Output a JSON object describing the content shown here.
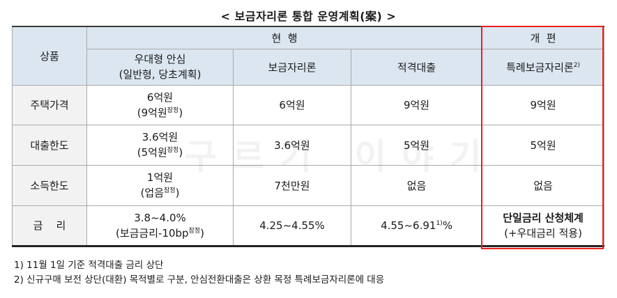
{
  "title": "< 보금자리론 통합 운영계획(案) >",
  "table": {
    "product_label": "상품",
    "current_label": "현  행",
    "reform_label": "개  편",
    "columns": {
      "c1_line1": "우대형 안심",
      "c1_line2": "(일반형, 당초계획)",
      "c2": "보금자리론",
      "c3": "적격대출",
      "c4": "특례보금자리론",
      "c4_sup": "2)"
    },
    "rows": [
      {
        "label": "주택가격",
        "c1_line1": "6억원",
        "c1_line2": "(9억원",
        "c1_sup": "잠정",
        "c1_close": ")",
        "c2": "6억원",
        "c3": "9억원",
        "c4": "9억원"
      },
      {
        "label": "대출한도",
        "c1_line1": "3.6억원",
        "c1_line2": "(5억원",
        "c1_sup": "잠정",
        "c1_close": ")",
        "c2": "3.6억원",
        "c3": "5억원",
        "c4": "5억원"
      },
      {
        "label": "소득한도",
        "c1_line1": "1억원",
        "c1_line2": "(업음",
        "c1_sup": "잠정",
        "c1_close": ")",
        "c2": "7천만원",
        "c3": "없음",
        "c4": "없음"
      },
      {
        "label": "금    리",
        "c1_line1": "3.8~4.0%",
        "c1_line2": "(보금금리-10bp",
        "c1_sup": "잠정",
        "c1_close": ")",
        "c2": "4.25~4.55%",
        "c3_main": "4.55~6.91",
        "c3_sup": "1)",
        "c3_tail": "%",
        "c4_line1": "단일금리 산청체계",
        "c4_line2": "(+우대금리 적용)"
      }
    ]
  },
  "watermark": "구르기 이야기",
  "notes": [
    "1) 11월 1일 기준 적격대출 금리 상단",
    "2) 신규구매 보전 상단(대환) 목적별로 구분, 안심전환대출은 상환 목정 특례보금자리론에 대응"
  ],
  "colors": {
    "header_bg": "#dce6f1",
    "row_header_bg": "#f2f2f2",
    "highlight_border": "#e8201a"
  }
}
